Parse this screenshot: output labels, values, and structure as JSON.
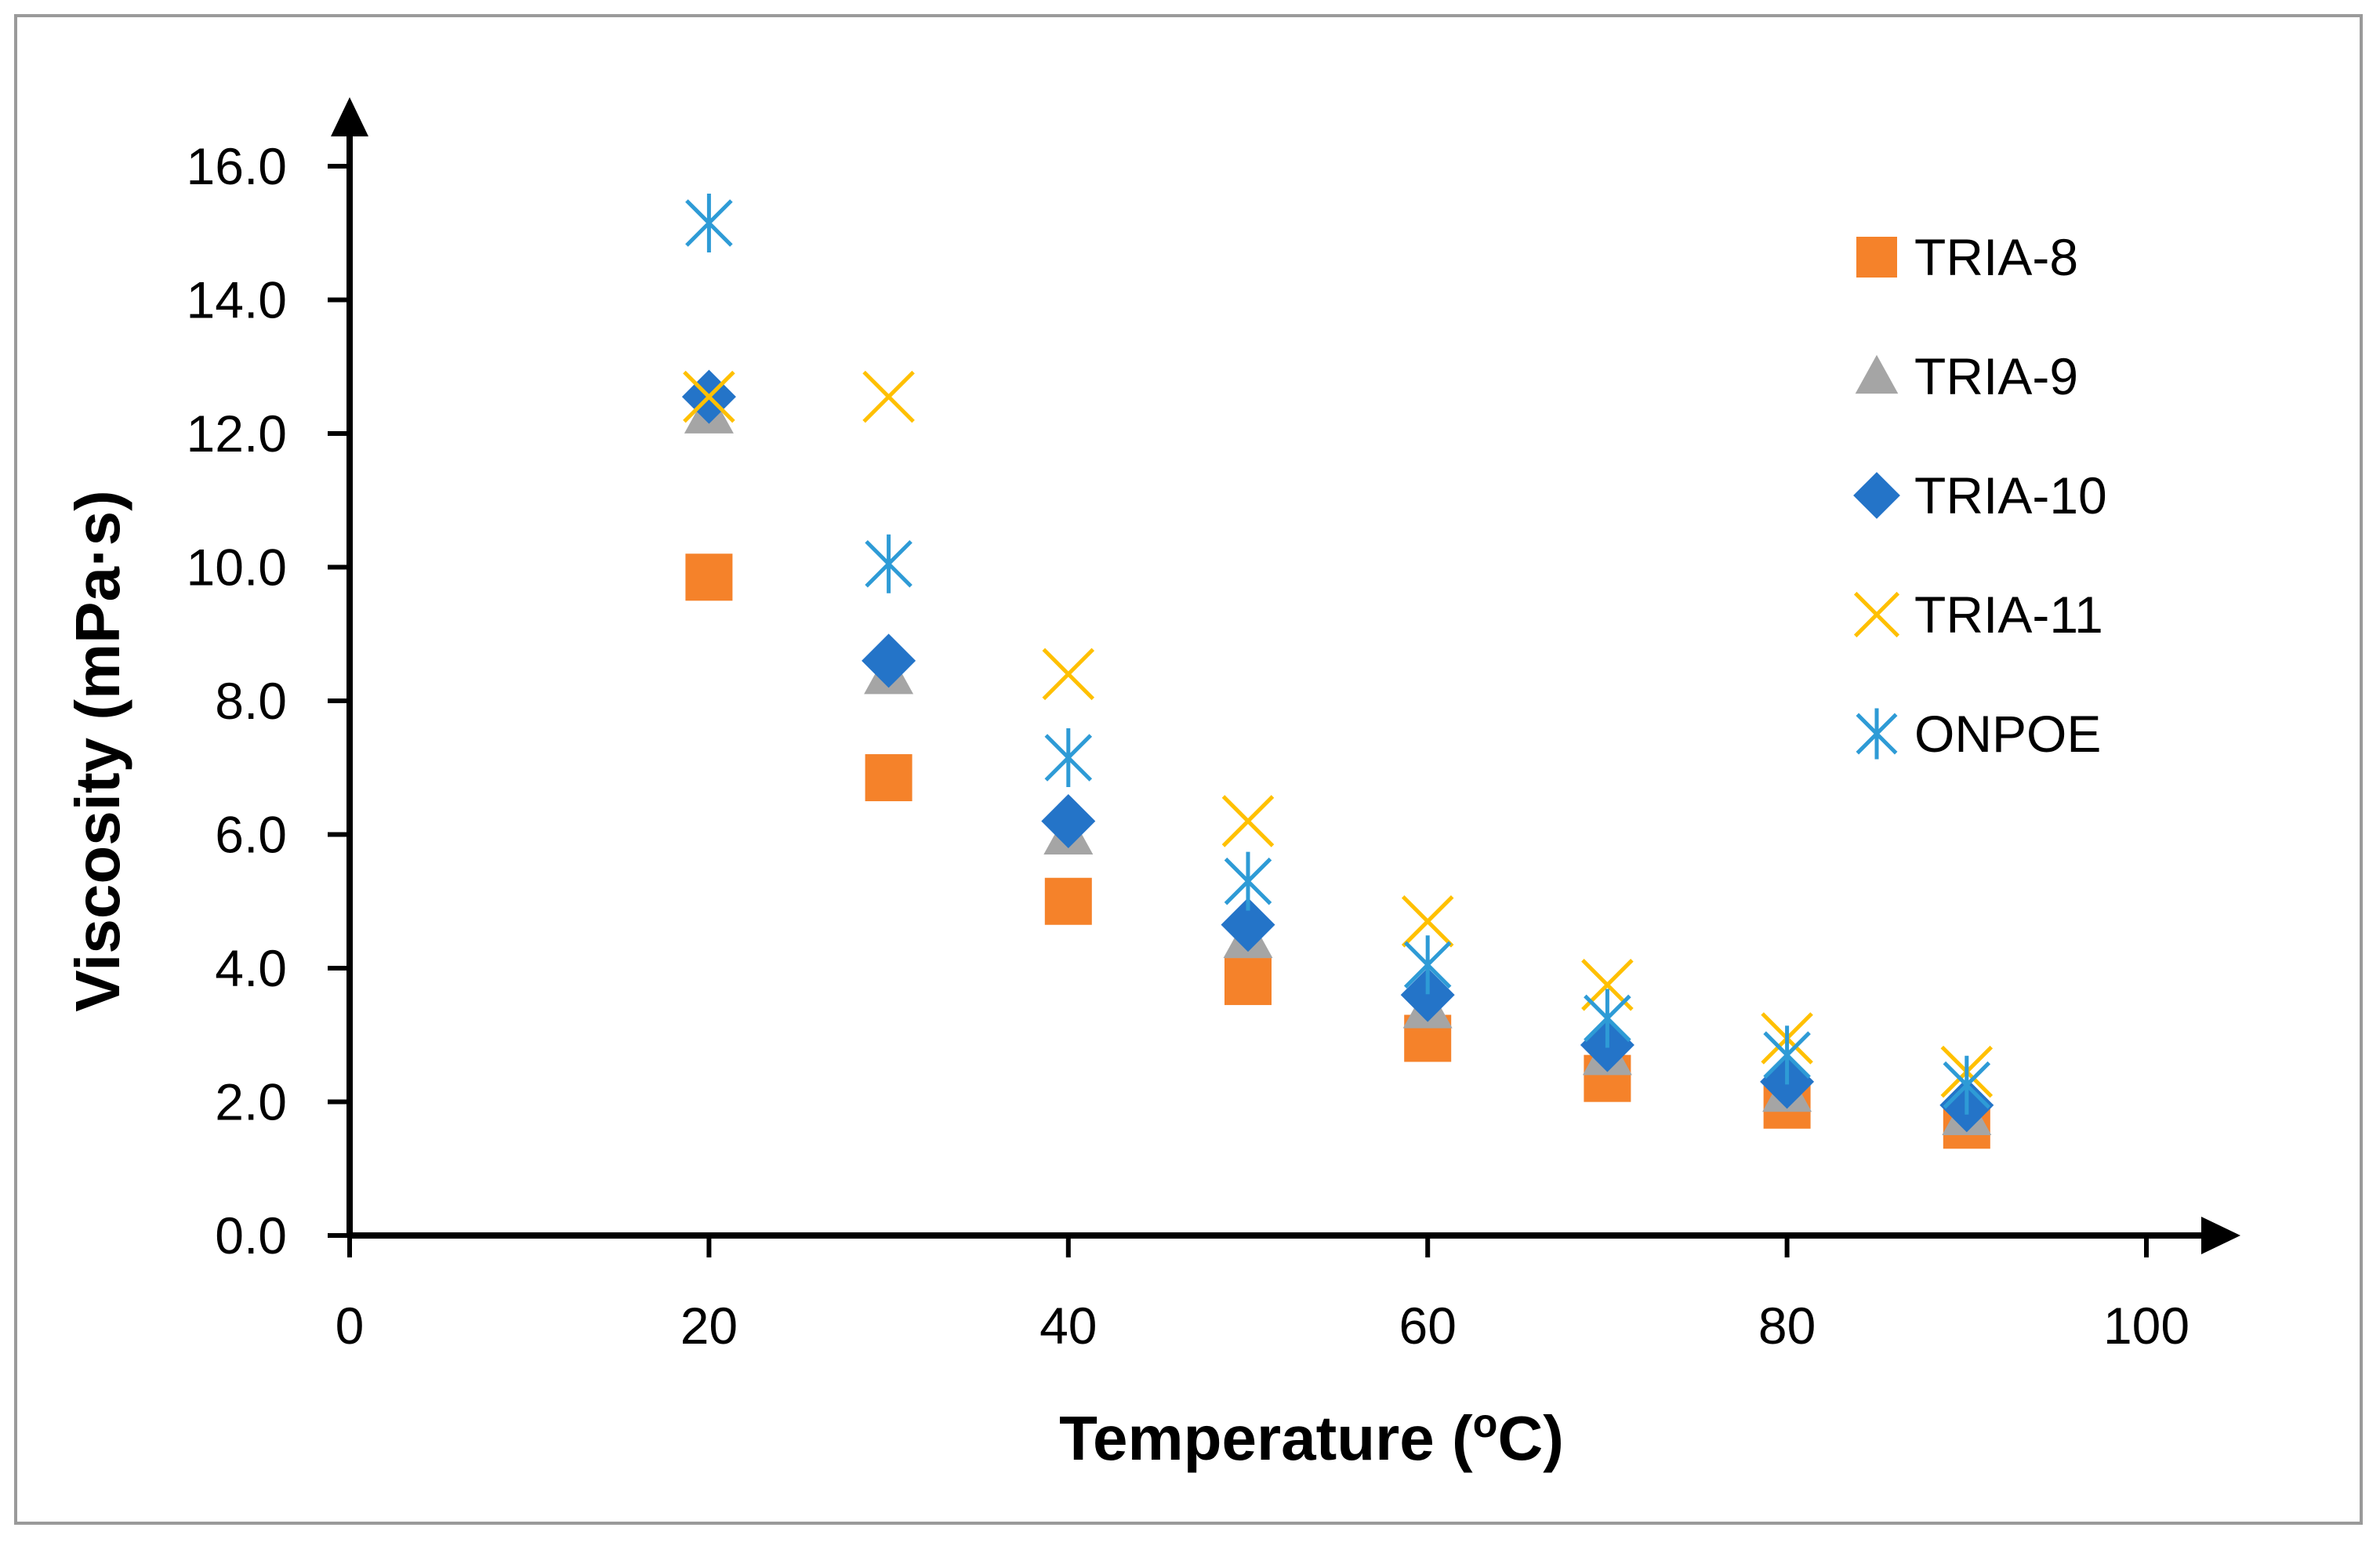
{
  "chart_data": {
    "type": "scatter",
    "title": "",
    "xlabel": "Temperature (",
    "xlabel_sup": "o",
    "xlabel_tail": "C)",
    "ylabel": "Viscosity (mPa·s)",
    "xlim": [
      0,
      100
    ],
    "ylim": [
      0,
      16
    ],
    "x_ticks": [
      0,
      20,
      40,
      60,
      80,
      100
    ],
    "x_tick_labels": [
      "0",
      "20",
      "40",
      "60",
      "80",
      "100"
    ],
    "y_ticks": [
      0,
      2,
      4,
      6,
      8,
      10,
      12,
      14,
      16
    ],
    "y_tick_labels": [
      "0.0",
      "2.0",
      "4.0",
      "6.0",
      "8.0",
      "10.0",
      "12.0",
      "14.0",
      "16.0"
    ],
    "grid": false,
    "legend_position": "right",
    "series": [
      {
        "name": "TRIA-8",
        "marker": "square",
        "color": "#F5822A",
        "x": [
          20,
          30,
          40,
          50,
          60,
          70,
          80,
          90
        ],
        "y": [
          9.85,
          6.85,
          5.0,
          3.8,
          2.95,
          2.35,
          1.95,
          1.65
        ]
      },
      {
        "name": "TRIA-9",
        "marker": "triangle",
        "color": "#A5A5A5",
        "x": [
          20,
          30,
          40,
          50,
          60,
          70,
          80,
          90
        ],
        "y": [
          12.3,
          8.4,
          6.0,
          4.45,
          3.4,
          2.7,
          2.15,
          1.8
        ]
      },
      {
        "name": "TRIA-10",
        "marker": "diamond",
        "color": "#2474C8",
        "x": [
          20,
          30,
          40,
          50,
          60,
          70,
          80,
          90
        ],
        "y": [
          12.55,
          8.6,
          6.2,
          4.65,
          3.6,
          2.85,
          2.3,
          1.95
        ]
      },
      {
        "name": "TRIA-11",
        "marker": "x",
        "color": "#FFC000",
        "x": [
          20,
          30,
          40,
          50,
          60,
          70,
          80,
          90
        ],
        "y": [
          12.55,
          12.55,
          8.4,
          6.2,
          4.7,
          3.75,
          2.95,
          2.45
        ]
      },
      {
        "name": "ONPOE",
        "marker": "star",
        "color": "#2E9BD6",
        "x": [
          20,
          30,
          40,
          50,
          60,
          70,
          80,
          90
        ],
        "y": [
          15.15,
          10.05,
          7.15,
          5.3,
          4.05,
          3.25,
          2.7,
          2.25
        ]
      }
    ]
  }
}
